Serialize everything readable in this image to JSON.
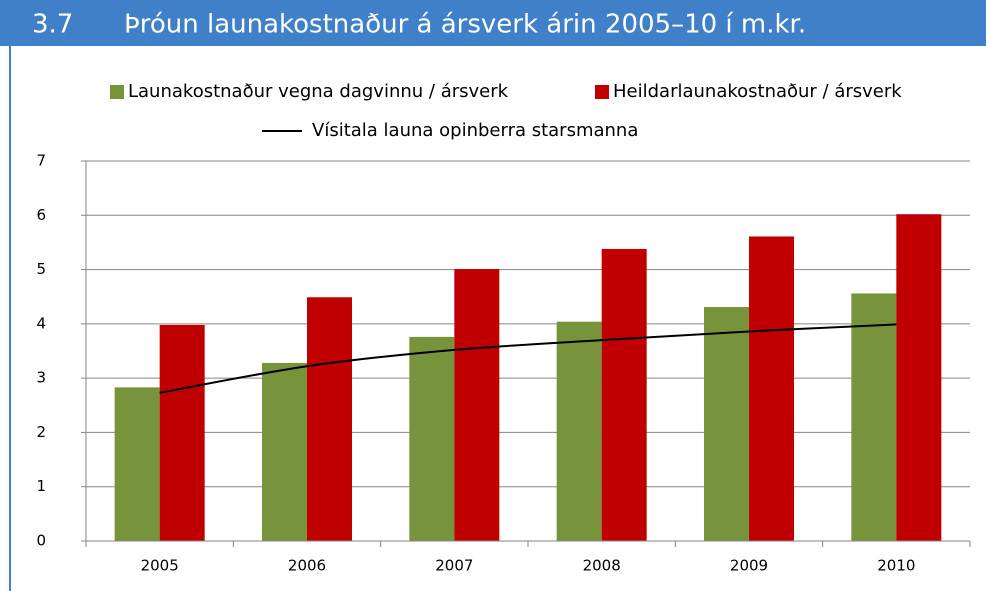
{
  "chart_data": {
    "type": "bar",
    "number": "3.7",
    "title": "Þróun launakostnaður á ársverk árin 2005–10 í m.kr.",
    "categories": [
      "2005",
      "2006",
      "2007",
      "2008",
      "2009",
      "2010"
    ],
    "series": [
      {
        "name": "Launakostnaður vegna dagvinnu / ársverk",
        "color": "#77933c",
        "type": "bar",
        "values": [
          2.83,
          3.28,
          3.76,
          4.04,
          4.31,
          4.56
        ]
      },
      {
        "name": "Heildarlaunakostnaður / ársverk",
        "color": "#c00000",
        "type": "bar",
        "values": [
          3.98,
          4.49,
          5.01,
          5.38,
          5.61,
          6.02
        ]
      },
      {
        "name": "Vísitala launa opinberra starsmanna",
        "color": "#000000",
        "type": "line",
        "values": [
          2.73,
          3.22,
          3.52,
          3.7,
          3.86,
          3.99
        ]
      }
    ],
    "ylim": [
      0,
      7
    ],
    "yticks": [
      0,
      1,
      2,
      3,
      4,
      5,
      6,
      7
    ],
    "grid": true
  }
}
